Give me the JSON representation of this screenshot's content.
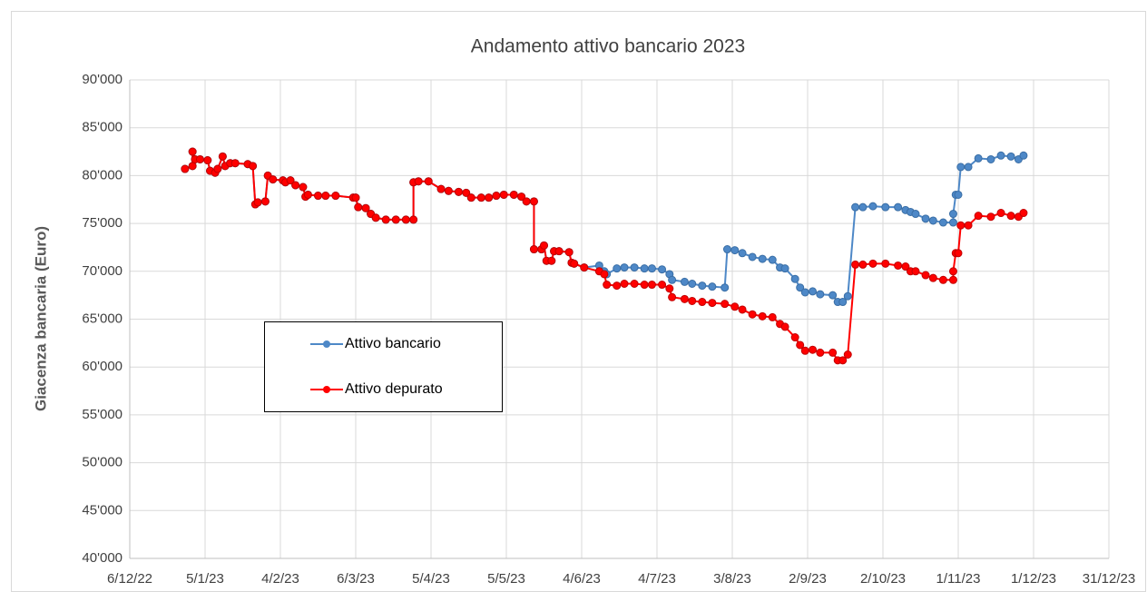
{
  "chart_data": {
    "type": "line",
    "title": "Andamento attivo bancario 2023",
    "y_label": "Giacenza bancaria (Euro)",
    "xlim": [
      "2022-12-06",
      "2023-12-31"
    ],
    "xticks": [
      {
        "value": "2022-12-06",
        "label": "6/12/22"
      },
      {
        "value": "2023-01-05",
        "label": "5/1/23"
      },
      {
        "value": "2023-02-04",
        "label": "4/2/23"
      },
      {
        "value": "2023-03-06",
        "label": "6/3/23"
      },
      {
        "value": "2023-04-05",
        "label": "5/4/23"
      },
      {
        "value": "2023-05-05",
        "label": "5/5/23"
      },
      {
        "value": "2023-06-04",
        "label": "4/6/23"
      },
      {
        "value": "2023-07-04",
        "label": "4/7/23"
      },
      {
        "value": "2023-08-03",
        "label": "3/8/23"
      },
      {
        "value": "2023-09-02",
        "label": "2/9/23"
      },
      {
        "value": "2023-10-02",
        "label": "2/10/23"
      },
      {
        "value": "2023-11-01",
        "label": "1/11/23"
      },
      {
        "value": "2023-12-01",
        "label": "1/12/23"
      },
      {
        "value": "2023-12-31",
        "label": "31/12/23"
      }
    ],
    "ylim": [
      40000,
      90000
    ],
    "yticks": [
      {
        "value": 40000,
        "label": "40'000"
      },
      {
        "value": 45000,
        "label": "45'000"
      },
      {
        "value": 50000,
        "label": "50'000"
      },
      {
        "value": 55000,
        "label": "55'000"
      },
      {
        "value": 60000,
        "label": "60'000"
      },
      {
        "value": 65000,
        "label": "65'000"
      },
      {
        "value": 70000,
        "label": "70'000"
      },
      {
        "value": 75000,
        "label": "75'000"
      },
      {
        "value": 80000,
        "label": "80'000"
      },
      {
        "value": 85000,
        "label": "85'000"
      },
      {
        "value": 90000,
        "label": "90'000"
      }
    ],
    "grid": true,
    "legend_position": "center-left",
    "series": [
      {
        "name": "Attivo bancario",
        "color": "#4e88c7",
        "x": [
          "2022-12-28",
          "2022-12-31",
          "2022-12-31",
          "2023-01-01",
          "2023-01-03",
          "2023-01-06",
          "2023-01-07",
          "2023-01-09",
          "2023-01-10",
          "2023-01-12",
          "2023-01-13",
          "2023-01-15",
          "2023-01-17",
          "2023-01-22",
          "2023-01-24",
          "2023-01-25",
          "2023-01-26",
          "2023-01-29",
          "2023-01-30",
          "2023-02-01",
          "2023-02-05",
          "2023-02-06",
          "2023-02-08",
          "2023-02-10",
          "2023-02-13",
          "2023-02-14",
          "2023-02-15",
          "2023-02-19",
          "2023-02-22",
          "2023-02-26",
          "2023-03-05",
          "2023-03-06",
          "2023-03-07",
          "2023-03-10",
          "2023-03-12",
          "2023-03-14",
          "2023-03-18",
          "2023-03-22",
          "2023-03-26",
          "2023-03-29",
          "2023-03-29",
          "2023-03-31",
          "2023-04-04",
          "2023-04-09",
          "2023-04-12",
          "2023-04-16",
          "2023-04-19",
          "2023-04-21",
          "2023-04-25",
          "2023-04-28",
          "2023-05-01",
          "2023-05-04",
          "2023-05-08",
          "2023-05-11",
          "2023-05-13",
          "2023-05-16",
          "2023-05-16",
          "2023-05-19",
          "2023-05-20",
          "2023-05-21",
          "2023-05-23",
          "2023-05-24",
          "2023-05-26",
          "2023-05-30",
          "2023-05-31",
          "2023-06-01",
          "2023-06-05",
          "2023-06-11",
          "2023-06-13",
          "2023-06-14",
          "2023-06-18",
          "2023-06-21",
          "2023-06-25",
          "2023-06-29",
          "2023-07-02",
          "2023-07-06",
          "2023-07-09",
          "2023-07-10",
          "2023-07-15",
          "2023-07-18",
          "2023-07-22",
          "2023-07-26",
          "2023-07-31",
          "2023-08-01",
          "2023-08-04",
          "2023-08-07",
          "2023-08-11",
          "2023-08-15",
          "2023-08-19",
          "2023-08-22",
          "2023-08-24",
          "2023-08-28",
          "2023-08-30",
          "2023-09-01",
          "2023-09-04",
          "2023-09-07",
          "2023-09-12",
          "2023-09-14",
          "2023-09-16",
          "2023-09-18",
          "2023-09-21",
          "2023-09-24",
          "2023-09-28",
          "2023-10-03",
          "2023-10-08",
          "2023-10-11",
          "2023-10-13",
          "2023-10-15",
          "2023-10-19",
          "2023-10-22",
          "2023-10-26",
          "2023-10-30",
          "2023-10-30",
          "2023-10-31",
          "2023-11-01",
          "2023-11-02",
          "2023-11-05",
          "2023-11-09",
          "2023-11-14",
          "2023-11-18",
          "2023-11-22",
          "2023-11-25",
          "2023-11-27"
        ],
        "values": [
          80700,
          81000,
          82500,
          81700,
          81700,
          81600,
          80500,
          80300,
          80700,
          82000,
          81000,
          81300,
          81300,
          81200,
          81000,
          77000,
          77200,
          77300,
          80000,
          79600,
          79500,
          79300,
          79500,
          79000,
          78800,
          77800,
          78000,
          77900,
          77900,
          77900,
          77700,
          77700,
          76700,
          76600,
          76000,
          75600,
          75400,
          75400,
          75400,
          75400,
          79300,
          79400,
          79400,
          78600,
          78400,
          78300,
          78200,
          77700,
          77700,
          77700,
          77900,
          78000,
          78000,
          77800,
          77300,
          77300,
          72300,
          72300,
          72700,
          71100,
          71100,
          72100,
          72100,
          72000,
          70900,
          70800,
          70400,
          70600,
          70000,
          69700,
          70300,
          70400,
          70400,
          70300,
          70300,
          70200,
          69700,
          69100,
          68900,
          68700,
          68500,
          68400,
          68300,
          72300,
          72200,
          71900,
          71500,
          71300,
          71200,
          70400,
          70300,
          69200,
          68300,
          67800,
          67900,
          67600,
          67500,
          66800,
          66800,
          67400,
          76700,
          76700,
          76800,
          76700,
          76700,
          76400,
          76200,
          76000,
          75500,
          75300,
          75100,
          75100,
          76000,
          78000,
          78000,
          80900,
          80900,
          81800,
          81700,
          82100,
          82000,
          81700,
          82100
        ]
      },
      {
        "name": "Attivo depurato",
        "color": "#ff0000",
        "x": [
          "2022-12-28",
          "2022-12-31",
          "2022-12-31",
          "2023-01-01",
          "2023-01-03",
          "2023-01-06",
          "2023-01-07",
          "2023-01-09",
          "2023-01-10",
          "2023-01-12",
          "2023-01-13",
          "2023-01-15",
          "2023-01-17",
          "2023-01-22",
          "2023-01-24",
          "2023-01-25",
          "2023-01-26",
          "2023-01-29",
          "2023-01-30",
          "2023-02-01",
          "2023-02-05",
          "2023-02-06",
          "2023-02-08",
          "2023-02-10",
          "2023-02-13",
          "2023-02-14",
          "2023-02-15",
          "2023-02-19",
          "2023-02-22",
          "2023-02-26",
          "2023-03-05",
          "2023-03-06",
          "2023-03-07",
          "2023-03-10",
          "2023-03-12",
          "2023-03-14",
          "2023-03-18",
          "2023-03-22",
          "2023-03-26",
          "2023-03-29",
          "2023-03-29",
          "2023-03-31",
          "2023-04-04",
          "2023-04-09",
          "2023-04-12",
          "2023-04-16",
          "2023-04-19",
          "2023-04-21",
          "2023-04-25",
          "2023-04-28",
          "2023-05-01",
          "2023-05-04",
          "2023-05-08",
          "2023-05-11",
          "2023-05-13",
          "2023-05-16",
          "2023-05-16",
          "2023-05-19",
          "2023-05-20",
          "2023-05-21",
          "2023-05-23",
          "2023-05-24",
          "2023-05-26",
          "2023-05-30",
          "2023-05-31",
          "2023-06-01",
          "2023-06-05",
          "2023-06-11",
          "2023-06-13",
          "2023-06-14",
          "2023-06-18",
          "2023-06-21",
          "2023-06-25",
          "2023-06-29",
          "2023-07-02",
          "2023-07-06",
          "2023-07-09",
          "2023-07-10",
          "2023-07-15",
          "2023-07-18",
          "2023-07-22",
          "2023-07-26",
          "2023-07-31",
          "2023-08-04",
          "2023-08-07",
          "2023-08-11",
          "2023-08-15",
          "2023-08-19",
          "2023-08-22",
          "2023-08-24",
          "2023-08-28",
          "2023-08-30",
          "2023-09-01",
          "2023-09-04",
          "2023-09-07",
          "2023-09-12",
          "2023-09-14",
          "2023-09-16",
          "2023-09-18",
          "2023-09-21",
          "2023-09-24",
          "2023-09-28",
          "2023-10-03",
          "2023-10-08",
          "2023-10-11",
          "2023-10-13",
          "2023-10-15",
          "2023-10-19",
          "2023-10-22",
          "2023-10-26",
          "2023-10-30",
          "2023-10-30",
          "2023-10-31",
          "2023-11-01",
          "2023-11-02",
          "2023-11-05",
          "2023-11-09",
          "2023-11-14",
          "2023-11-18",
          "2023-11-22",
          "2023-11-25",
          "2023-11-27"
        ],
        "values": [
          80700,
          81000,
          82500,
          81700,
          81700,
          81600,
          80500,
          80300,
          80700,
          82000,
          81000,
          81300,
          81300,
          81200,
          81000,
          77000,
          77200,
          77300,
          80000,
          79600,
          79500,
          79300,
          79500,
          79000,
          78800,
          77800,
          78000,
          77900,
          77900,
          77900,
          77700,
          77700,
          76700,
          76600,
          76000,
          75600,
          75400,
          75400,
          75400,
          75400,
          79300,
          79400,
          79400,
          78600,
          78400,
          78300,
          78200,
          77700,
          77700,
          77700,
          77900,
          78000,
          78000,
          77800,
          77300,
          77300,
          72300,
          72300,
          72700,
          71100,
          71100,
          72100,
          72100,
          72000,
          70900,
          70800,
          70400,
          70000,
          69700,
          68600,
          68500,
          68700,
          68700,
          68600,
          68600,
          68600,
          68200,
          67300,
          67100,
          66900,
          66800,
          66700,
          66600,
          66300,
          66000,
          65500,
          65300,
          65200,
          64500,
          64200,
          63100,
          62300,
          61700,
          61800,
          61500,
          61500,
          60700,
          60700,
          61300,
          70700,
          70700,
          70800,
          70800,
          70600,
          70500,
          70000,
          70000,
          69600,
          69300,
          69100,
          69100,
          70000,
          71900,
          71900,
          74800,
          74800,
          75800,
          75700,
          76100,
          75800,
          75700,
          76100
        ]
      }
    ]
  }
}
